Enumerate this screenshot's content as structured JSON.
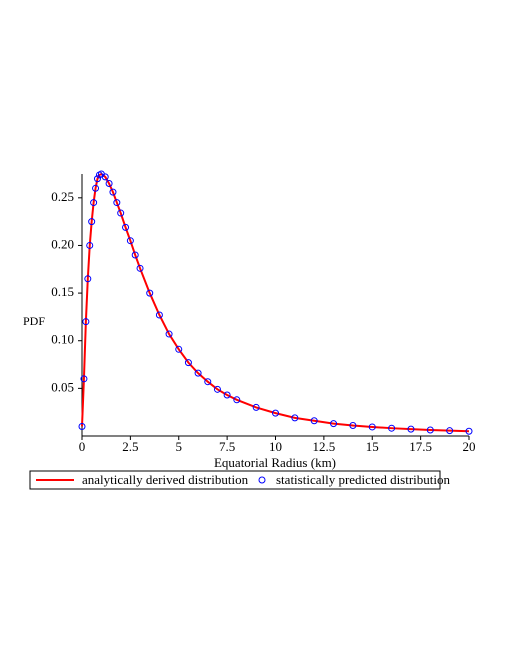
{
  "chart_data": {
    "type": "line+scatter",
    "ylabel": "PDF",
    "xlabel": "Equatorial Radius (km)",
    "x": [
      0,
      0.1,
      0.2,
      0.3,
      0.4,
      0.5,
      0.6,
      0.7,
      0.8,
      0.9,
      1.0,
      1.2,
      1.4,
      1.6,
      1.8,
      2.0,
      2.25,
      2.5,
      2.75,
      3,
      3.5,
      4,
      4.5,
      5,
      5.5,
      6,
      6.5,
      7,
      7.5,
      8,
      9,
      10,
      11,
      12,
      13,
      14,
      15,
      16,
      17,
      18,
      19,
      20
    ],
    "series": [
      {
        "name": "analytically derived distribution",
        "color": "#ff0000",
        "mark": "line",
        "values": [
          0.01,
          0.06,
          0.12,
          0.165,
          0.2,
          0.225,
          0.245,
          0.26,
          0.27,
          0.274,
          0.275,
          0.272,
          0.265,
          0.256,
          0.245,
          0.234,
          0.219,
          0.205,
          0.19,
          0.176,
          0.15,
          0.127,
          0.107,
          0.091,
          0.077,
          0.066,
          0.057,
          0.049,
          0.043,
          0.038,
          0.03,
          0.024,
          0.019,
          0.016,
          0.013,
          0.011,
          0.0095,
          0.0082,
          0.0072,
          0.0063,
          0.0056,
          0.005
        ]
      },
      {
        "name": "statistically predicted distribution",
        "color": "#0000ff",
        "mark": "circle",
        "values": [
          0.01,
          0.06,
          0.12,
          0.165,
          0.2,
          0.225,
          0.245,
          0.26,
          0.27,
          0.274,
          0.275,
          0.272,
          0.265,
          0.256,
          0.245,
          0.234,
          0.219,
          0.205,
          0.19,
          0.176,
          0.15,
          0.127,
          0.107,
          0.091,
          0.077,
          0.066,
          0.057,
          0.049,
          0.043,
          0.038,
          0.03,
          0.024,
          0.019,
          0.016,
          0.013,
          0.011,
          0.0095,
          0.0082,
          0.0072,
          0.0063,
          0.0056,
          0.005
        ]
      }
    ],
    "xlim": [
      0,
      20
    ],
    "ylim": [
      0,
      0.275
    ],
    "xticks": [
      0,
      2.5,
      5,
      7.5,
      10,
      12.5,
      15,
      17.5,
      20
    ],
    "yticks": [
      0.05,
      {
        "value": 0.1,
        "label": "0.10"
      },
      0.15,
      {
        "value": 0.2,
        "label": "0.20"
      },
      0.25
    ],
    "grid": false
  }
}
